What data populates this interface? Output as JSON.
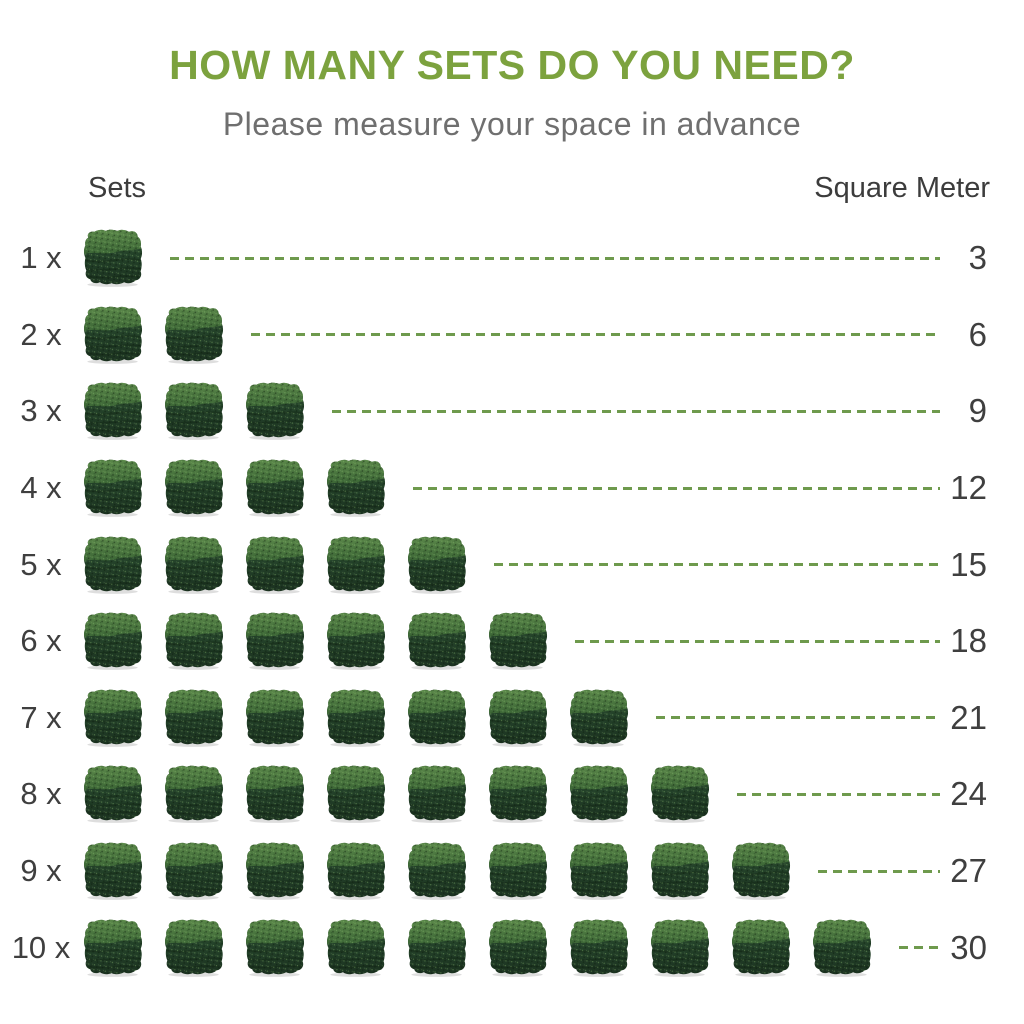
{
  "title": "HOW MANY SETS DO YOU NEED?",
  "subtitle": "Please measure your space in advance",
  "colors": {
    "title_green": "#7ca23e",
    "dash_green": "#6e9a4d",
    "text_dark": "#3e3e3e",
    "subtitle_gray": "#6f6f6f",
    "hedge_top_green": "#527e44",
    "hedge_front_green": "#203a22"
  },
  "icons": {
    "unit": "hedge-cube-icon"
  },
  "chart_data": {
    "type": "table",
    "title": "HOW MANY SETS DO YOU NEED?",
    "subtitle": "Please measure your space in advance",
    "columns": [
      "Sets",
      "Square Meter"
    ],
    "sqm_per_set": 3,
    "legend": "each hedge cube icon = 1 set, dashed line connects set count to coverage",
    "rows": [
      {
        "label": "1 x",
        "sets": 1,
        "square_meter": 3
      },
      {
        "label": "2 x",
        "sets": 2,
        "square_meter": 6
      },
      {
        "label": "3 x",
        "sets": 3,
        "square_meter": 9
      },
      {
        "label": "4 x",
        "sets": 4,
        "square_meter": 12
      },
      {
        "label": "5 x",
        "sets": 5,
        "square_meter": 15
      },
      {
        "label": "6 x",
        "sets": 6,
        "square_meter": 18
      },
      {
        "label": "7 x",
        "sets": 7,
        "square_meter": 21
      },
      {
        "label": "8 x",
        "sets": 8,
        "square_meter": 24
      },
      {
        "label": "9 x",
        "sets": 9,
        "square_meter": 27
      },
      {
        "label": "10 x",
        "sets": 10,
        "square_meter": 30
      }
    ]
  }
}
